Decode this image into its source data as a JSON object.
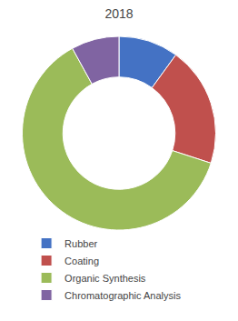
{
  "chart_data": {
    "type": "donut",
    "title": "2018",
    "categories": [
      "Rubber",
      "Coating",
      "Organic Synthesis",
      "Chromatographic Analysis"
    ],
    "values": [
      10,
      20,
      62,
      8
    ],
    "colors": [
      "#4472c4",
      "#c0504d",
      "#9bbb59",
      "#8064a2"
    ],
    "legend": "bottom"
  }
}
